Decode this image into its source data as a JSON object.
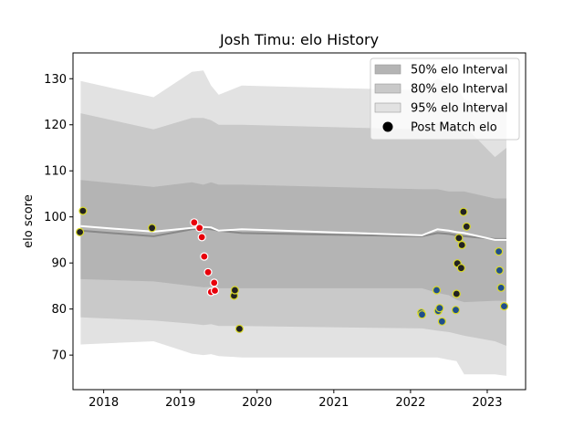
{
  "chart_data": {
    "type": "scatter",
    "title": "Josh Timu: elo History",
    "xlabel": "",
    "ylabel": "elo score",
    "xlim": [
      2017.6,
      2023.5
    ],
    "ylim": [
      62.5,
      135.6
    ],
    "x_ticks": [
      2018,
      2019,
      2020,
      2021,
      2022,
      2023
    ],
    "x_tick_labels": [
      "2018",
      "2019",
      "2020",
      "2021",
      "2022",
      "2023"
    ],
    "y_ticks": [
      70,
      80,
      90,
      100,
      110,
      120,
      130
    ],
    "y_tick_labels": [
      "70",
      "80",
      "90",
      "100",
      "110",
      "120",
      "130"
    ],
    "grid": false,
    "legend_position": "top-right",
    "colors": {
      "band_50": "#b4b4b4",
      "band_80": "#c9c9c9",
      "band_95": "#e2e2e2",
      "median_line": "#888888",
      "mean_line": "#ffffff",
      "point_black": "#222222",
      "point_red": "#e8000b",
      "point_blue": "#1f4e8c",
      "point_edge_yellow": "#d9d92a",
      "point_edge_white": "#ffffff"
    },
    "legend": [
      {
        "label": "50% elo Interval",
        "kind": "band_50"
      },
      {
        "label": "80% elo Interval",
        "kind": "band_80"
      },
      {
        "label": "95% elo Interval",
        "kind": "band_95"
      },
      {
        "label": "Post Match elo",
        "kind": "marker"
      }
    ],
    "bands": {
      "x": [
        2017.7,
        2018.65,
        2019.15,
        2019.3,
        2019.4,
        2019.5,
        2019.8,
        2022.15,
        2022.35,
        2022.5,
        2022.6,
        2022.7,
        2023.1,
        2023.25
      ],
      "lo_95": [
        72.3,
        73.0,
        70.3,
        70.0,
        70.2,
        69.8,
        69.5,
        69.5,
        69.5,
        69.0,
        68.7,
        65.8,
        65.8,
        65.5
      ],
      "hi_95": [
        129.5,
        126.0,
        131.5,
        131.8,
        128.5,
        126.5,
        128.5,
        127.5,
        130.0,
        129.0,
        128.5,
        125.5,
        123.8,
        123.8
      ],
      "lo_80": [
        78.2,
        77.5,
        76.8,
        76.5,
        76.7,
        76.3,
        76.3,
        75.8,
        75.3,
        75.0,
        74.6,
        74.2,
        73.0,
        72.0
      ],
      "hi_80": [
        122.5,
        119.0,
        121.5,
        121.5,
        121.0,
        120.0,
        120.0,
        119.0,
        120.5,
        120.0,
        120.0,
        119.8,
        113.0,
        115.0
      ],
      "lo_50": [
        86.5,
        86.0,
        85.0,
        84.7,
        84.8,
        84.5,
        84.5,
        84.5,
        83.5,
        83.0,
        82.0,
        81.5,
        81.8,
        81.8
      ],
      "hi_50": [
        108.0,
        106.5,
        107.5,
        107.0,
        107.5,
        107.0,
        107.0,
        106.0,
        106.0,
        105.5,
        105.5,
        105.5,
        104.0,
        104.0
      ],
      "median": [
        97.0,
        95.8,
        97.3,
        97.5,
        97.3,
        97.0,
        96.5,
        95.8,
        96.5,
        96.3,
        96.0,
        95.8,
        95.2,
        95.2
      ],
      "mean": [
        98.0,
        96.8,
        97.6,
        97.8,
        97.7,
        97.0,
        97.3,
        96.0,
        97.3,
        97.0,
        96.7,
        96.5,
        95.0,
        95.0
      ]
    },
    "series": [
      {
        "color": "point_black",
        "edge": "point_edge_yellow",
        "x": [
          2017.69,
          2017.73,
          2018.63,
          2019.7,
          2019.71,
          2019.77,
          2022.6,
          2022.61,
          2022.63,
          2022.66,
          2022.67,
          2022.69,
          2022.73
        ],
        "y": [
          96.7,
          101.3,
          97.6,
          82.9,
          84.1,
          75.7,
          83.3,
          89.9,
          95.4,
          88.9,
          93.9,
          101.1,
          97.9
        ]
      },
      {
        "color": "point_red",
        "edge": "point_edge_white",
        "x": [
          2019.18,
          2019.25,
          2019.28,
          2019.31,
          2019.36,
          2019.4,
          2019.44,
          2019.45
        ],
        "y": [
          98.8,
          97.6,
          95.6,
          91.4,
          88.0,
          83.7,
          85.7,
          84.0
        ]
      },
      {
        "color": "point_blue",
        "edge": "point_edge_yellow",
        "x": [
          2022.14,
          2022.15,
          2022.34,
          2022.36,
          2022.38,
          2022.41,
          2022.59,
          2023.15,
          2023.16,
          2023.18,
          2023.22
        ],
        "y": [
          79.2,
          78.8,
          84.1,
          79.6,
          80.2,
          77.3,
          79.8,
          92.5,
          88.4,
          84.6,
          80.6
        ]
      }
    ]
  }
}
